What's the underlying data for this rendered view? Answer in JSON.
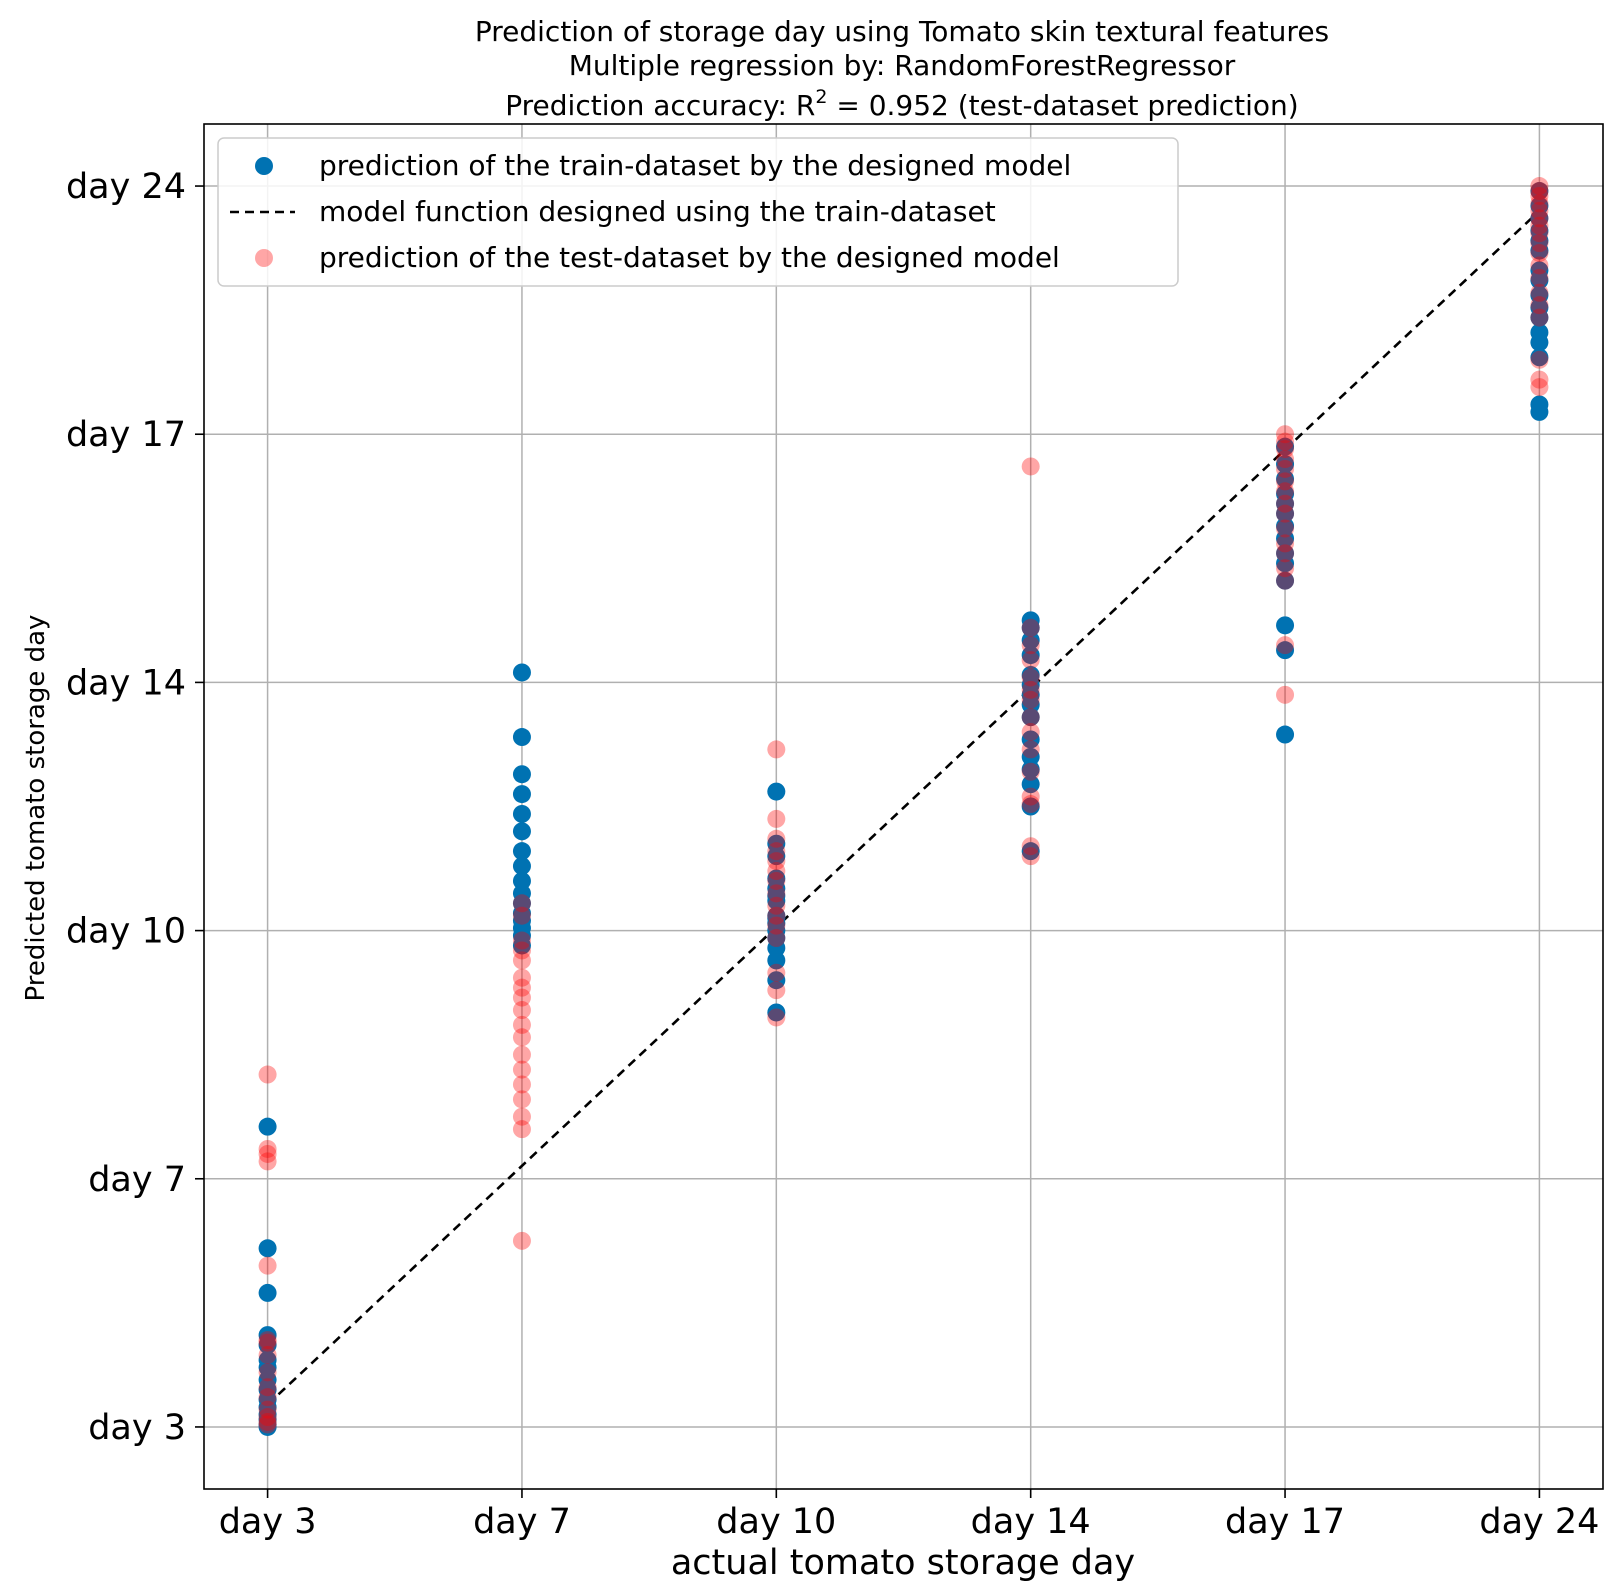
{
  "chart_data": {
    "type": "scatter",
    "title": {
      "line1": "Prediction of storage day using Tomato skin textural features",
      "line2": "Multiple regression by: RandomForestRegressor",
      "line3_prefix": "Prediction accuracy: R",
      "line3_sup": "2",
      "line3_suffix": " = 0.952 (test-dataset prediction)"
    },
    "xlabel": "actual tomato storage day",
    "ylabel": "Predicted tomato storage day",
    "x_ticks": [
      "day 3",
      "day 7",
      "day 10",
      "day 14",
      "day 17",
      "day 24"
    ],
    "y_ticks": [
      "day 3",
      "day 7",
      "day 10",
      "day 14",
      "day 17",
      "day 24"
    ],
    "ylim": [
      -0.25,
      5.25
    ],
    "xlim": [
      -0.25,
      5.25
    ],
    "grid": true,
    "legend_position": "top-left",
    "legend": {
      "train": "prediction of the train-dataset by the designed model",
      "model": "model function designed using the train-dataset",
      "test": "prediction of the test-dataset by the designed model"
    },
    "colors": {
      "train": "#0072b2",
      "test": "#ff0000",
      "test_alpha": 0.35,
      "model": "#000000",
      "grid": "#b0b0b0"
    },
    "model_line": {
      "x": [
        0,
        5
      ],
      "y": [
        0.09,
        4.9
      ]
    },
    "series": [
      {
        "name": "train",
        "x_index": [
          0,
          0,
          0,
          0,
          0,
          0,
          0,
          0,
          0,
          0,
          0,
          0,
          0,
          0,
          0,
          1,
          1,
          1,
          1,
          1,
          1,
          1,
          1,
          1,
          1,
          1,
          1,
          1,
          1,
          1,
          1,
          2,
          2,
          2,
          2,
          2,
          2,
          2,
          2,
          2,
          2,
          2,
          2,
          2,
          2,
          2,
          2,
          3,
          3,
          3,
          3,
          3,
          3,
          3,
          3,
          3,
          3,
          3,
          3,
          3,
          3,
          3,
          4,
          4,
          4,
          4,
          4,
          4,
          4,
          4,
          4,
          4,
          4,
          4,
          4,
          4,
          5,
          5,
          5,
          5,
          5,
          5,
          5,
          5,
          5,
          5,
          5,
          5,
          5,
          5,
          5,
          5
        ],
        "y_value": [
          1.21,
          0.72,
          0.54,
          0.37,
          0.33,
          0.27,
          0.24,
          0.19,
          0.15,
          0.11,
          0.08,
          0.05,
          0.03,
          0.01,
          0.0,
          3.04,
          2.78,
          2.63,
          2.55,
          2.47,
          2.4,
          2.32,
          2.26,
          2.2,
          2.15,
          2.11,
          2.07,
          2.04,
          2.01,
          1.98,
          1.94,
          2.56,
          2.05,
          2.35,
          2.3,
          2.21,
          2.17,
          2.14,
          2.12,
          2.06,
          2.03,
          2.0,
          1.97,
          1.93,
          1.88,
          1.8,
          1.67,
          3.25,
          3.22,
          3.17,
          3.11,
          3.03,
          2.99,
          2.95,
          2.91,
          2.86,
          2.77,
          2.7,
          2.65,
          2.59,
          2.5,
          2.32,
          3.95,
          3.88,
          3.82,
          3.76,
          3.72,
          3.68,
          3.63,
          3.58,
          3.52,
          3.48,
          3.41,
          3.23,
          3.13,
          2.79,
          4.98,
          4.92,
          4.87,
          4.82,
          4.78,
          4.74,
          4.66,
          4.62,
          4.56,
          4.51,
          4.47,
          4.41,
          4.37,
          4.31,
          4.12,
          4.09
        ]
      },
      {
        "name": "test",
        "x_index": [
          0,
          0,
          0,
          0,
          0,
          0,
          0,
          0,
          0,
          0,
          0,
          0,
          0,
          0,
          0,
          1,
          1,
          1,
          1,
          1,
          1,
          1,
          1,
          1,
          1,
          1,
          1,
          1,
          1,
          1,
          1,
          1,
          1,
          2,
          2,
          2,
          2,
          2,
          2,
          2,
          2,
          2,
          2,
          2,
          2,
          2,
          2,
          2,
          3,
          3,
          3,
          3,
          3,
          3,
          3,
          3,
          3,
          3,
          3,
          3,
          3,
          3,
          3,
          4,
          4,
          4,
          4,
          4,
          4,
          4,
          4,
          4,
          4,
          4,
          4,
          4,
          4,
          4,
          4,
          5,
          5,
          5,
          5,
          5,
          5,
          5,
          5,
          5,
          5,
          5,
          5,
          5,
          5,
          5,
          5,
          5,
          5
        ],
        "y_value": [
          1.42,
          1.12,
          1.07,
          1.1,
          0.65,
          0.34,
          0.35,
          0.29,
          0.22,
          0.16,
          0.12,
          0.07,
          0.04,
          0.02,
          0.01,
          2.11,
          2.06,
          1.92,
          1.88,
          1.81,
          1.77,
          1.73,
          1.68,
          1.62,
          1.57,
          1.5,
          1.44,
          1.38,
          1.32,
          1.25,
          1.2,
          0.75,
          1.96,
          2.73,
          2.45,
          2.37,
          2.32,
          2.28,
          2.24,
          2.2,
          2.15,
          2.1,
          2.06,
          2.02,
          1.97,
          1.83,
          1.76,
          1.65,
          3.87,
          3.22,
          3.15,
          3.09,
          3.02,
          2.97,
          2.93,
          2.86,
          2.8,
          2.73,
          2.64,
          2.54,
          2.51,
          2.34,
          2.3,
          4.0,
          3.97,
          3.94,
          3.9,
          3.86,
          3.81,
          3.77,
          3.72,
          3.68,
          3.62,
          3.56,
          3.52,
          3.46,
          3.41,
          3.15,
          2.95,
          5.0,
          4.98,
          4.96,
          4.93,
          4.9,
          4.87,
          4.84,
          4.81,
          4.77,
          4.73,
          4.68,
          4.63,
          4.57,
          4.52,
          4.47,
          4.3,
          4.22,
          4.19
        ]
      }
    ]
  }
}
